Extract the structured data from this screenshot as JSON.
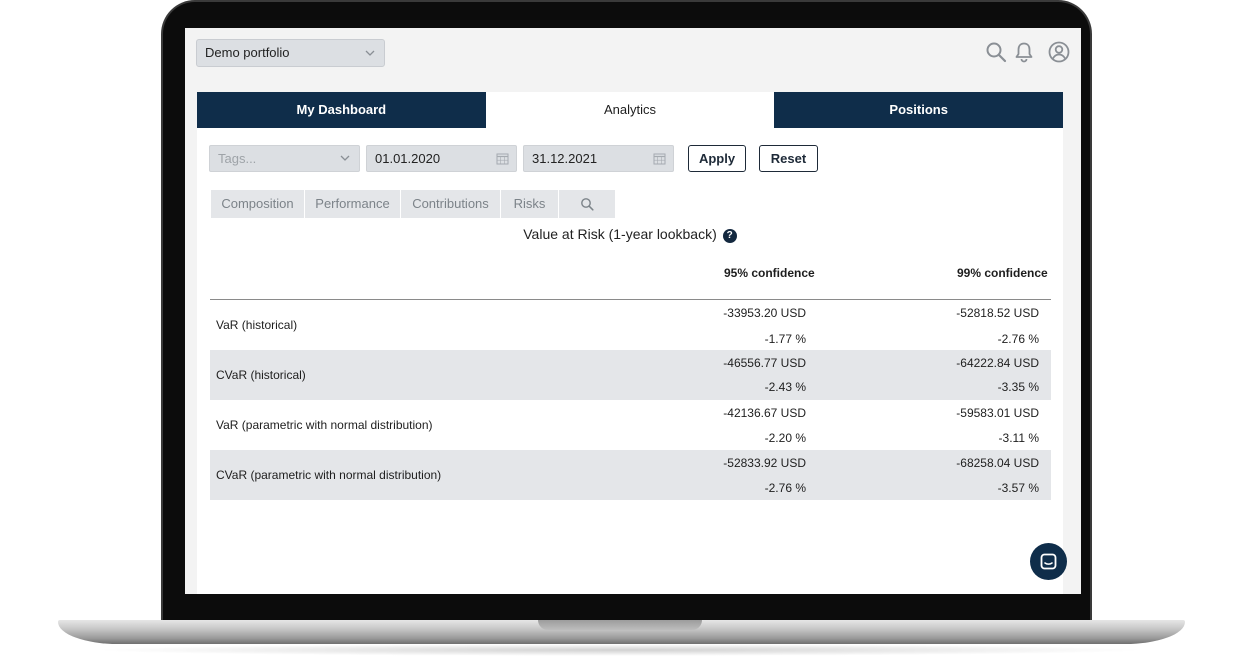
{
  "header": {
    "portfolio_select": "Demo portfolio"
  },
  "tabs": [
    {
      "label": "My Dashboard"
    },
    {
      "label": "Analytics"
    },
    {
      "label": "Positions"
    }
  ],
  "filters": {
    "tags_placeholder": "Tags...",
    "date_from": "01.01.2020",
    "date_to": "31.12.2021",
    "apply_label": "Apply",
    "reset_label": "Reset"
  },
  "subtabs": [
    {
      "label": "Composition"
    },
    {
      "label": "Performance"
    },
    {
      "label": "Contributions"
    },
    {
      "label": "Risks"
    }
  ],
  "var_table": {
    "title": "Value at Risk (1-year lookback)",
    "columns": [
      "95% confidence",
      "99% confidence"
    ],
    "rows": [
      {
        "label": "VaR (historical)",
        "c95_usd": "-33953.20 USD",
        "c95_pct": "-1.77 %",
        "c99_usd": "-52818.52 USD",
        "c99_pct": "-2.76 %"
      },
      {
        "label": "CVaR (historical)",
        "c95_usd": "-46556.77 USD",
        "c95_pct": "-2.43 %",
        "c99_usd": "-64222.84 USD",
        "c99_pct": "-3.35 %"
      },
      {
        "label": "VaR (parametric with normal distribution)",
        "c95_usd": "-42136.67 USD",
        "c95_pct": "-2.20 %",
        "c99_usd": "-59583.01 USD",
        "c99_pct": "-3.11 %"
      },
      {
        "label": "CVaR (parametric with normal distribution)",
        "c95_usd": "-52833.92 USD",
        "c95_pct": "-2.76 %",
        "c99_usd": "-68258.04 USD",
        "c99_pct": "-3.57 %"
      }
    ]
  },
  "colors": {
    "navy": "#0f2d4a",
    "row_shade": "#e4e6e9"
  },
  "icons": [
    "chevron-down-icon",
    "search-icon",
    "bell-icon",
    "user-circle-icon",
    "calendar-icon",
    "help-icon",
    "chat-icon"
  ]
}
